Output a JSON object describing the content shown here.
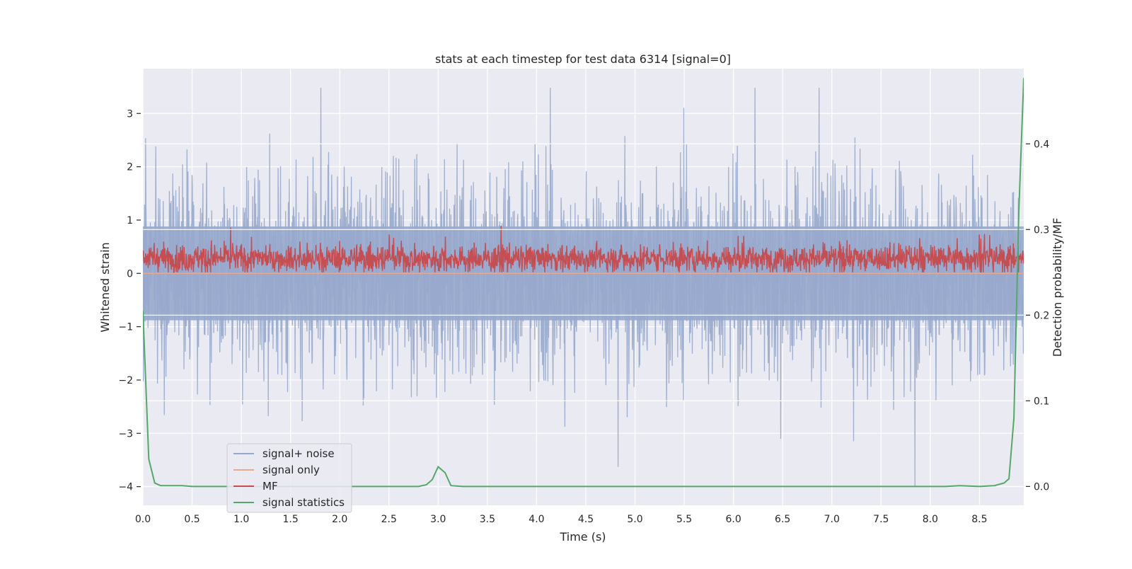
{
  "chart_data": {
    "type": "line",
    "title": "stats at each timestep for test data 6314 [signal=0]",
    "xlabel": "Time (s)",
    "ylabel_left": "Whitened strain",
    "ylabel_right": "Detection probability/MF",
    "xlim": [
      0.0,
      8.95
    ],
    "ylim_left": [
      -4.35,
      3.84
    ],
    "ylim_right": [
      -0.022,
      0.4878
    ],
    "grid": true,
    "legend_position": "lower-left",
    "x_ticks": [
      0.0,
      0.5,
      1.0,
      1.5,
      2.0,
      2.5,
      3.0,
      3.5,
      4.0,
      4.5,
      5.0,
      5.5,
      6.0,
      6.5,
      7.0,
      7.5,
      8.0,
      8.5
    ],
    "x_tick_labels": [
      "0.0",
      "0.5",
      "1.0",
      "1.5",
      "2.0",
      "2.5",
      "3.0",
      "3.5",
      "4.0",
      "4.5",
      "5.0",
      "5.5",
      "6.0",
      "6.5",
      "7.0",
      "7.5",
      "8.0",
      "8.5"
    ],
    "y_left_ticks": [
      -4,
      -3,
      -2,
      -1,
      0,
      1,
      2,
      3
    ],
    "y_left_tick_labels": [
      "−4",
      "−3",
      "−2",
      "−1",
      "0",
      "1",
      "2",
      "3"
    ],
    "y_right_ticks": [
      0.0,
      0.1,
      0.2,
      0.3,
      0.4
    ],
    "y_right_tick_labels": [
      "0.0",
      "0.1",
      "0.2",
      "0.3",
      "0.4"
    ],
    "series": [
      {
        "name": "signal+ noise",
        "axis": "left",
        "color": "#97A8CC",
        "style": "dense noisy strain trace",
        "approx_range": [
          -4.0,
          3.48
        ],
        "typical_band": [
          -1.6,
          1.6
        ]
      },
      {
        "name": "signal only",
        "axis": "left",
        "color": "#E8A98F",
        "values_constant": 0.0
      },
      {
        "name": "MF",
        "axis": "left",
        "color": "#C44E52",
        "style": "noisy trace",
        "approx_range": [
          0.0,
          0.9
        ],
        "typical_band": [
          0.05,
          0.55
        ]
      },
      {
        "name": "signal statistics",
        "axis": "right",
        "color": "#55A868",
        "x": [
          0.0,
          0.06,
          0.12,
          0.18,
          0.3,
          0.4,
          0.5,
          0.6,
          1.0,
          2.0,
          2.8,
          2.88,
          2.94,
          3.0,
          3.07,
          3.13,
          3.25,
          4.0,
          5.0,
          6.0,
          7.0,
          8.0,
          8.15,
          8.3,
          8.5,
          8.65,
          8.75,
          8.8,
          8.85,
          8.9,
          8.95
        ],
        "y": [
          0.205,
          0.032,
          0.004,
          0.001,
          0.001,
          0.001,
          0.0,
          0.0,
          0.0,
          0.0,
          0.0,
          0.002,
          0.008,
          0.023,
          0.016,
          0.001,
          0.0,
          0.0,
          0.0,
          0.0,
          0.0,
          0.0,
          0.0,
          0.001,
          0.0,
          0.001,
          0.004,
          0.009,
          0.08,
          0.32,
          0.477
        ]
      }
    ]
  }
}
